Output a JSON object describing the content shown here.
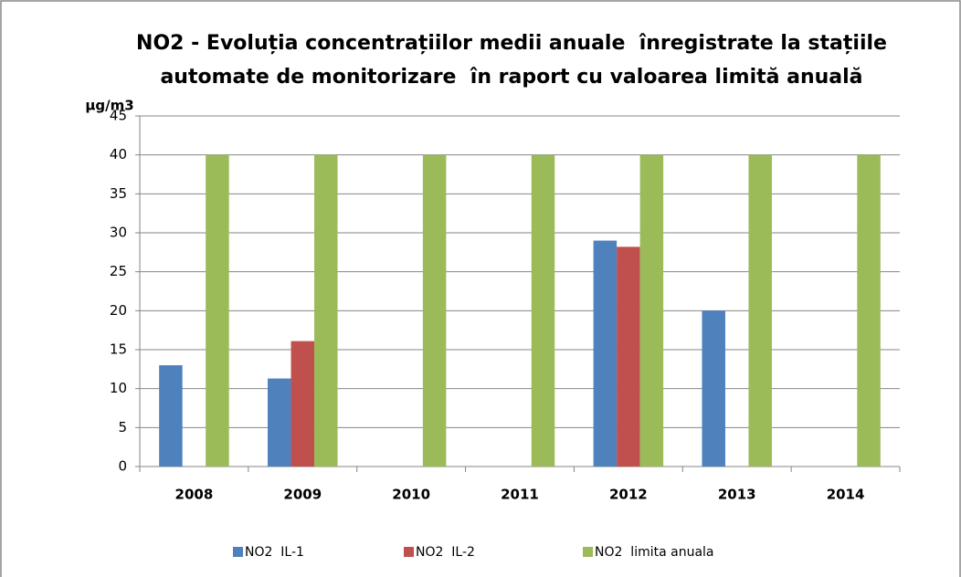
{
  "chart_data": {
    "type": "bar",
    "title": [
      "NO2 - Evoluția concentrațiilor medii anuale  înregistrate la stațiile",
      "automate de monitorizare  în raport cu valoarea limită anuală"
    ],
    "y_label": "µg/m3",
    "categories": [
      "2008",
      "2009",
      "2010",
      "2011",
      "2012",
      "2013",
      "2014"
    ],
    "series": [
      {
        "name": "NO2  IL-1",
        "color": "#4f81bd",
        "values": [
          13,
          11.3,
          null,
          null,
          29,
          20,
          null
        ]
      },
      {
        "name": "NO2  IL-2",
        "color": "#c0504d",
        "values": [
          null,
          16.1,
          null,
          null,
          28.2,
          null,
          null
        ]
      },
      {
        "name": "NO2  limita anuala",
        "color": "#9bbb59",
        "values": [
          40,
          40,
          40,
          40,
          40,
          40,
          40
        ]
      }
    ],
    "ylim": [
      0,
      45
    ],
    "yticks": [
      0,
      5,
      10,
      15,
      20,
      25,
      30,
      35,
      40,
      45
    ],
    "grid": true,
    "legend": "bottom"
  }
}
